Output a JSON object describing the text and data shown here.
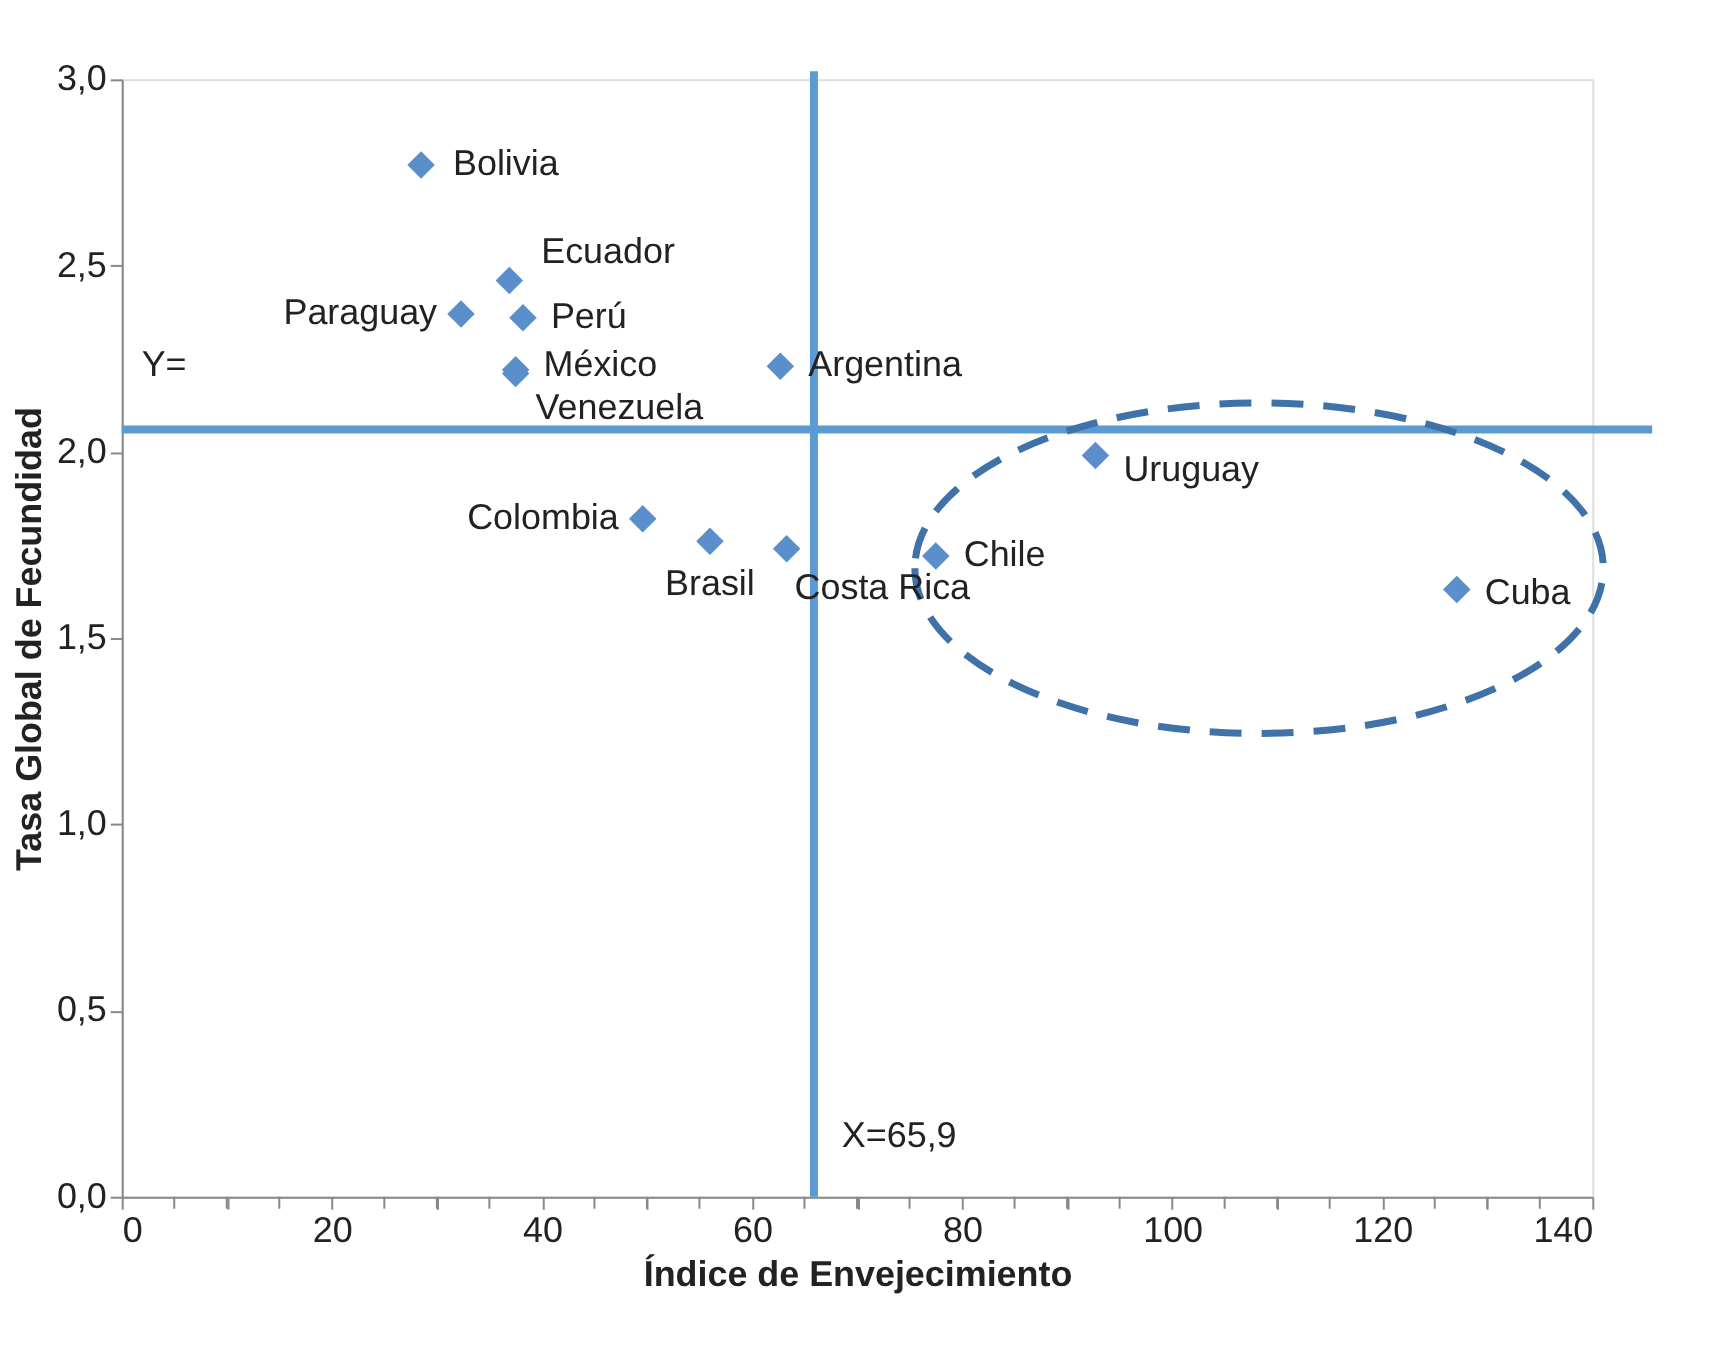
{
  "chart_data": {
    "type": "scatter",
    "xlabel": "Índice de Envejecimiento",
    "ylabel": "Tasa Global de Fecundidad",
    "xlim": [
      0,
      140
    ],
    "ylim": [
      0,
      3
    ],
    "xticks": [
      0,
      {
        "value": 5,
        "label": null
      },
      {
        "value": 10,
        "label": null
      },
      {
        "value": 15,
        "label": null
      },
      20,
      {
        "value": 25,
        "label": null
      },
      {
        "value": 30,
        "label": null
      },
      {
        "value": 35,
        "label": null
      },
      40,
      {
        "value": 45,
        "label": null
      },
      {
        "value": 50,
        "label": null
      },
      {
        "value": 55,
        "label": null
      },
      60,
      {
        "value": 65,
        "label": null
      },
      {
        "value": 70,
        "label": null
      },
      {
        "value": 75,
        "label": null
      },
      80,
      {
        "value": 85,
        "label": null
      },
      {
        "value": 90,
        "label": null
      },
      {
        "value": 95,
        "label": null
      },
      100,
      {
        "value": 105,
        "label": null
      },
      {
        "value": 110,
        "label": null
      },
      {
        "value": 115,
        "label": null
      },
      120,
      {
        "value": 125,
        "label": null
      },
      {
        "value": 130,
        "label": null
      },
      {
        "value": 135,
        "label": null
      },
      140
    ],
    "yticks": [
      {
        "value": 0,
        "label": "0,0"
      },
      {
        "value": 0.5,
        "label": "0,5"
      },
      {
        "value": 1,
        "label": "1,0"
      },
      {
        "value": 1.5,
        "label": "1,5"
      },
      {
        "value": 2,
        "label": "2,0"
      },
      {
        "value": 2.5,
        "label": "2,5"
      },
      {
        "value": 3,
        "label": "3,0"
      }
    ],
    "grid": false,
    "marker": "diamond",
    "series": [
      {
        "name": "Bolivia",
        "color": "#5b8fcb",
        "x": [
          28.5
        ],
        "values": [
          2.77
        ]
      },
      {
        "name": "Ecuador",
        "color": "#5b8fcb",
        "x": [
          36.9
        ],
        "values": [
          2.46
        ]
      },
      {
        "name": "Paraguay",
        "color": "#5b8fcb",
        "x": [
          32.3
        ],
        "values": [
          2.37
        ]
      },
      {
        "name": "Perú",
        "color": "#5b8fcb",
        "x": [
          38.2
        ],
        "values": [
          2.36
        ]
      },
      {
        "name": "México",
        "color": "#5b8fcb",
        "x": [
          37.5
        ],
        "values": [
          2.22
        ]
      },
      {
        "name": "Venezuela",
        "color": "#5b8fcb",
        "x": [
          37.5
        ],
        "values": [
          2.21
        ]
      },
      {
        "name": "Argentina",
        "color": "#5b8fcb",
        "x": [
          62.7
        ],
        "values": [
          2.23
        ]
      },
      {
        "name": "Colombia",
        "color": "#5b8fcb",
        "x": [
          49.6
        ],
        "values": [
          1.82
        ]
      },
      {
        "name": "Brasil",
        "color": "#5b8fcb",
        "x": [
          56.0
        ],
        "values": [
          1.76
        ]
      },
      {
        "name": "Costa Rica",
        "color": "#5b8fcb",
        "x": [
          63.3
        ],
        "values": [
          1.74
        ]
      },
      {
        "name": "Chile",
        "color": "#5b8fcb",
        "x": [
          77.5
        ],
        "values": [
          1.72
        ]
      },
      {
        "name": "Uruguay",
        "color": "#5b8fcb",
        "x": [
          92.7
        ],
        "values": [
          1.99
        ]
      },
      {
        "name": "Cuba",
        "color": "#5b8fcb",
        "x": [
          127.1
        ],
        "values": [
          1.63
        ]
      }
    ],
    "ref_lines": [
      {
        "axis": "x",
        "value": 65.9,
        "label": "X=65,9",
        "color": "#5b9bd5"
      },
      {
        "axis": "y",
        "value": 2.06,
        "label": "Y=",
        "color": "#5b9bd5"
      }
    ]
  }
}
